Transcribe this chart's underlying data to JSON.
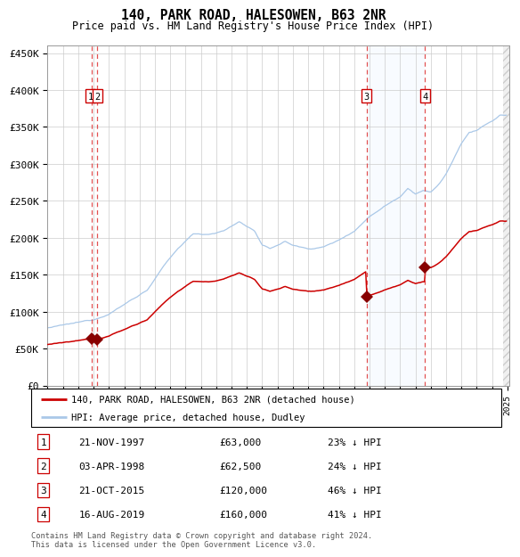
{
  "title": "140, PARK ROAD, HALESOWEN, B63 2NR",
  "subtitle": "Price paid vs. HM Land Registry's House Price Index (HPI)",
  "ylim": [
    0,
    460000
  ],
  "yticks": [
    0,
    50000,
    100000,
    150000,
    200000,
    250000,
    300000,
    350000,
    400000,
    450000
  ],
  "ytick_labels": [
    "£0",
    "£50K",
    "£100K",
    "£150K",
    "£200K",
    "£250K",
    "£300K",
    "£350K",
    "£400K",
    "£450K"
  ],
  "hpi_color": "#aac8e8",
  "price_color": "#cc0000",
  "sale_marker_color": "#880000",
  "dashed_line_color": "#dd3333",
  "shade_color": "#ddeeff",
  "footer_text": "Contains HM Land Registry data © Crown copyright and database right 2024.\nThis data is licensed under the Open Government Licence v3.0.",
  "legend_label_red": "140, PARK ROAD, HALESOWEN, B63 2NR (detached house)",
  "legend_label_blue": "HPI: Average price, detached house, Dudley",
  "sale_times": [
    1997.896,
    1998.253,
    2015.806,
    2019.623
  ],
  "sale_prices": [
    63000,
    62500,
    120000,
    160000
  ],
  "hpi_keypoints": [
    [
      1995.0,
      78000
    ],
    [
      1997.0,
      84000
    ],
    [
      1998.0,
      88000
    ],
    [
      1999.0,
      97000
    ],
    [
      2000.0,
      110000
    ],
    [
      2001.5,
      130000
    ],
    [
      2002.5,
      160000
    ],
    [
      2003.5,
      185000
    ],
    [
      2004.5,
      205000
    ],
    [
      2005.5,
      205000
    ],
    [
      2006.5,
      210000
    ],
    [
      2007.5,
      222000
    ],
    [
      2008.5,
      210000
    ],
    [
      2009.0,
      190000
    ],
    [
      2009.5,
      185000
    ],
    [
      2010.5,
      195000
    ],
    [
      2011.0,
      190000
    ],
    [
      2012.0,
      185000
    ],
    [
      2013.0,
      188000
    ],
    [
      2014.0,
      197000
    ],
    [
      2015.0,
      210000
    ],
    [
      2016.0,
      230000
    ],
    [
      2017.0,
      245000
    ],
    [
      2018.0,
      258000
    ],
    [
      2018.5,
      270000
    ],
    [
      2019.0,
      263000
    ],
    [
      2019.5,
      268000
    ],
    [
      2020.0,
      265000
    ],
    [
      2020.5,
      275000
    ],
    [
      2021.0,
      290000
    ],
    [
      2021.5,
      310000
    ],
    [
      2022.0,
      330000
    ],
    [
      2022.5,
      345000
    ],
    [
      2023.0,
      348000
    ],
    [
      2023.5,
      355000
    ],
    [
      2024.0,
      360000
    ],
    [
      2024.5,
      368000
    ]
  ],
  "table_rows": [
    {
      "num": 1,
      "date": "21-NOV-1997",
      "price": "£63,000",
      "pct": "23% ↓ HPI"
    },
    {
      "num": 2,
      "date": "03-APR-1998",
      "price": "£62,500",
      "pct": "24% ↓ HPI"
    },
    {
      "num": 3,
      "date": "21-OCT-2015",
      "price": "£120,000",
      "pct": "46% ↓ HPI"
    },
    {
      "num": 4,
      "date": "16-AUG-2019",
      "price": "£160,000",
      "pct": "41% ↓ HPI"
    }
  ]
}
